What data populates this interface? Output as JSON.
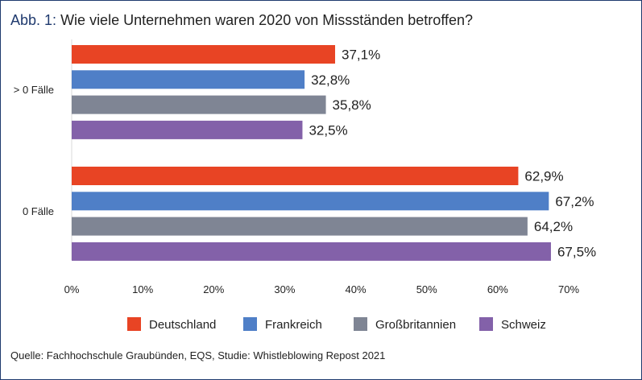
{
  "header": {
    "title_prefix": "Abb. 1:",
    "title_text": "Wie viele Unternehmen waren 2020 von Missständen betroffen?"
  },
  "footer": {
    "source": "Quelle: Fachhochschule Graubünden, EQS, Studie: Whistleblowing Repost 2021"
  },
  "chart_data": {
    "type": "bar",
    "orientation": "horizontal",
    "title": "Wie viele Unternehmen waren 2020 von Missständen betroffen?",
    "categories": [
      "> 0 Fälle",
      "0 Fälle"
    ],
    "series": [
      {
        "name": "Deutschland",
        "color": "#e84424",
        "values": [
          37.1,
          62.9
        ],
        "labels": [
          "37,1%",
          "62,9%"
        ]
      },
      {
        "name": "Frankreich",
        "color": "#4f7fc7",
        "values": [
          32.8,
          67.2
        ],
        "labels": [
          "32,8%",
          "67,2%"
        ]
      },
      {
        "name": "Großbritannien",
        "color": "#7f8594",
        "values": [
          35.8,
          64.2
        ],
        "labels": [
          "35,8%",
          "64,2%"
        ]
      },
      {
        "name": "Schweiz",
        "color": "#8361a9",
        "values": [
          32.5,
          67.5
        ],
        "labels": [
          "32,5%",
          "67,5%"
        ]
      }
    ],
    "xlim": [
      0,
      70
    ],
    "xticks": [
      0,
      10,
      20,
      30,
      40,
      50,
      60,
      70
    ],
    "xtick_labels": [
      "0%",
      "10%",
      "20%",
      "30%",
      "40%",
      "50%",
      "60%",
      "70%"
    ],
    "xlabel": "",
    "ylabel": "",
    "grid": false,
    "legend_position": "bottom"
  }
}
